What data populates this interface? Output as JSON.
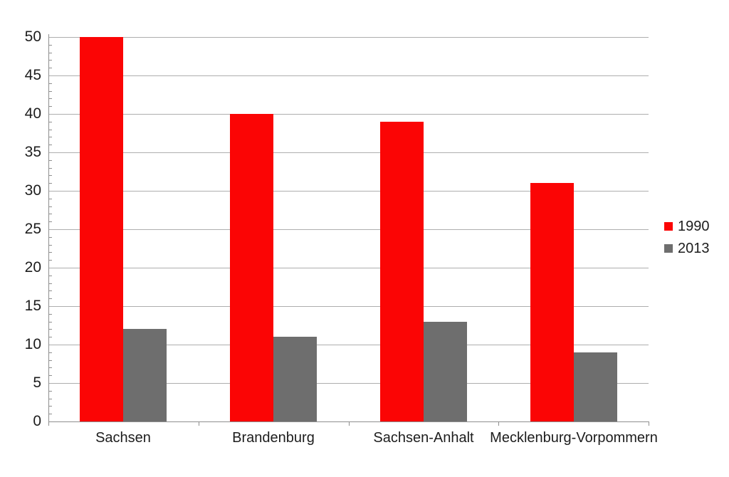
{
  "chart_data": {
    "type": "bar",
    "title": "",
    "categories": [
      "Sachsen",
      "Brandenburg",
      "Sachsen-Anhalt",
      "Mecklenburg-Vorpommern"
    ],
    "series": [
      {
        "name": "1990",
        "color": "#fb0505",
        "values": [
          50,
          40,
          39,
          31
        ]
      },
      {
        "name": "2013",
        "color": "#6e6e6e",
        "values": [
          12,
          11,
          13,
          9
        ]
      }
    ],
    "xlabel": "",
    "ylabel": "",
    "ylim": [
      0,
      50
    ],
    "ytick_step": 5,
    "yminor_step": 1,
    "ytick_labels": [
      "0",
      "5",
      "10",
      "15",
      "20",
      "25",
      "30",
      "35",
      "40",
      "45",
      "50"
    ],
    "grid": true,
    "legend_position": "right"
  },
  "colors": {
    "background": "#ffffff",
    "gridline": "#aeaeae",
    "axis": "#8f8f8f",
    "text": "#1d1d1d"
  }
}
